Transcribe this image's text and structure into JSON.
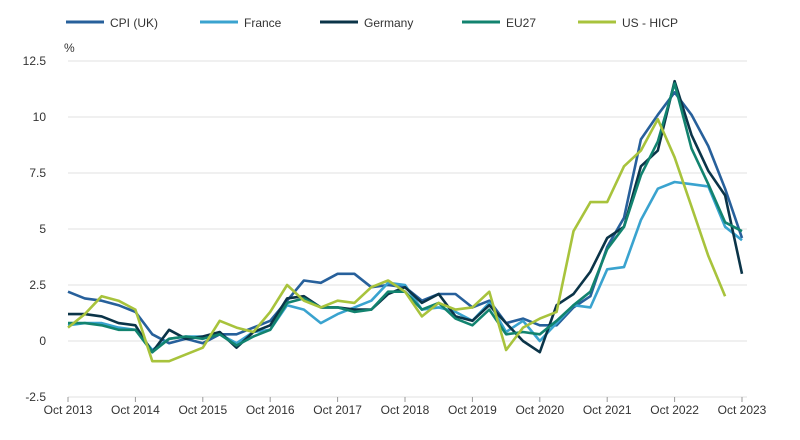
{
  "chart_data": {
    "type": "line",
    "title": "",
    "xlabel": "",
    "ylabel": "%",
    "ylim": [
      -2.5,
      12.5
    ],
    "yticks": [
      "-2.5",
      "0",
      "2.5",
      "5",
      "7.5",
      "10",
      "12.5"
    ],
    "ytick_values": [
      -2.5,
      0,
      2.5,
      5,
      7.5,
      10,
      12.5
    ],
    "xticks": [
      "Oct 2013",
      "Oct 2014",
      "Oct 2015",
      "Oct 2016",
      "Oct 2017",
      "Oct 2018",
      "Oct 2019",
      "Oct 2020",
      "Oct 2021",
      "Oct 2022",
      "Oct 2023"
    ],
    "grid": true,
    "legend_position": "top",
    "x": [
      "2013-10",
      "2014-01",
      "2014-04",
      "2014-07",
      "2014-10",
      "2015-01",
      "2015-04",
      "2015-07",
      "2015-10",
      "2016-01",
      "2016-04",
      "2016-07",
      "2016-10",
      "2017-01",
      "2017-04",
      "2017-07",
      "2017-10",
      "2018-01",
      "2018-04",
      "2018-07",
      "2018-10",
      "2019-01",
      "2019-04",
      "2019-07",
      "2019-10",
      "2020-01",
      "2020-04",
      "2020-07",
      "2020-10",
      "2021-01",
      "2021-04",
      "2021-07",
      "2021-10",
      "2022-01",
      "2022-04",
      "2022-07",
      "2022-10",
      "2023-01",
      "2023-04",
      "2023-07",
      "2023-10"
    ],
    "series": [
      {
        "name": "CPI (UK)",
        "color": "#27609b",
        "values": [
          2.2,
          1.9,
          1.8,
          1.6,
          1.3,
          0.3,
          -0.1,
          0.1,
          -0.1,
          0.3,
          0.3,
          0.6,
          0.9,
          1.8,
          2.7,
          2.6,
          3.0,
          3.0,
          2.4,
          2.5,
          2.4,
          1.8,
          2.1,
          2.1,
          1.5,
          1.8,
          0.8,
          1.0,
          0.7,
          0.7,
          1.5,
          2.0,
          4.2,
          5.5,
          9.0,
          10.1,
          11.1,
          10.1,
          8.7,
          6.8,
          4.6
        ]
      },
      {
        "name": "France",
        "color": "#3aa3cf",
        "values": [
          0.7,
          0.8,
          0.8,
          0.6,
          0.5,
          -0.4,
          0.1,
          0.2,
          0.2,
          0.3,
          -0.1,
          0.4,
          0.5,
          1.6,
          1.4,
          0.8,
          1.2,
          1.5,
          1.8,
          2.6,
          2.5,
          1.4,
          1.5,
          1.3,
          0.9,
          1.7,
          0.4,
          0.9,
          0.0,
          0.8,
          1.6,
          1.5,
          3.2,
          3.3,
          5.4,
          6.8,
          7.1,
          7.0,
          6.9,
          5.1,
          4.5
        ]
      },
      {
        "name": "Germany",
        "color": "#0b3448",
        "values": [
          1.2,
          1.2,
          1.1,
          0.8,
          0.7,
          -0.5,
          0.5,
          0.1,
          0.2,
          0.4,
          -0.3,
          0.4,
          0.7,
          1.9,
          2.0,
          1.5,
          1.5,
          1.4,
          1.4,
          2.1,
          2.4,
          1.7,
          2.1,
          1.1,
          0.9,
          1.6,
          0.8,
          0.0,
          -0.5,
          1.6,
          2.1,
          3.1,
          4.6,
          5.1,
          7.8,
          8.5,
          11.6,
          9.2,
          7.6,
          6.5,
          3.0
        ]
      },
      {
        "name": "EU27",
        "color": "#12836f",
        "values": [
          0.8,
          0.8,
          0.7,
          0.5,
          0.5,
          -0.5,
          0.1,
          0.2,
          0.1,
          0.3,
          -0.2,
          0.2,
          0.5,
          1.7,
          1.9,
          1.5,
          1.5,
          1.3,
          1.4,
          2.2,
          2.2,
          1.4,
          1.7,
          1.0,
          0.7,
          1.4,
          0.3,
          0.4,
          0.3,
          0.9,
          1.6,
          2.2,
          4.1,
          5.1,
          7.4,
          8.9,
          11.5,
          8.6,
          7.0,
          5.3,
          4.9
        ]
      },
      {
        "name": "US - HICP",
        "color": "#a8c33c",
        "values": [
          0.6,
          1.2,
          2.0,
          1.8,
          1.4,
          -0.9,
          -0.9,
          -0.6,
          -0.3,
          0.9,
          0.6,
          0.4,
          1.3,
          2.5,
          1.8,
          1.5,
          1.8,
          1.7,
          2.4,
          2.7,
          2.2,
          1.1,
          1.7,
          1.4,
          1.5,
          2.2,
          -0.4,
          0.6,
          1.0,
          1.3,
          4.9,
          6.2,
          6.2,
          7.8,
          8.5,
          9.9,
          8.2,
          6.0,
          3.8,
          2.0,
          null
        ]
      }
    ]
  }
}
